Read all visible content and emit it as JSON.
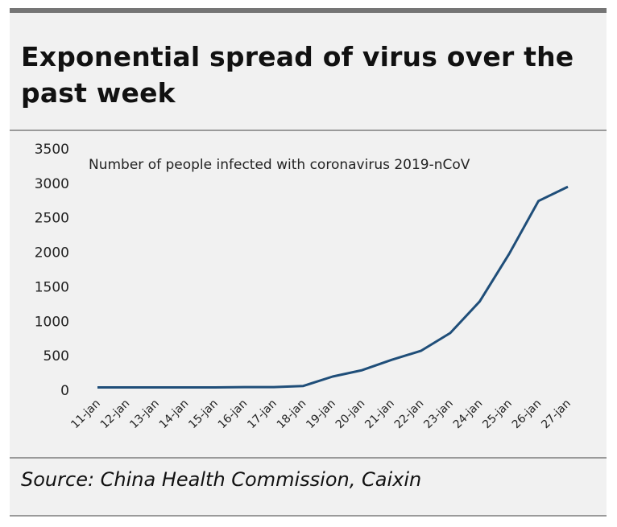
{
  "header": {
    "title": "Exponential spread of virus over the past week"
  },
  "footer": {
    "source": "Source: China Health Commission, Caixin"
  },
  "colors": {
    "panel_bg": "#f1f1f1",
    "line": "#1f4e79",
    "rule": "#9a9a9a",
    "top_rule": "#757575"
  },
  "chart_data": {
    "type": "line",
    "title": "Number of people infected with coronavirus 2019-nCoV",
    "xlabel": "",
    "ylabel": "",
    "ylim": [
      0,
      3500
    ],
    "yticks": [
      0,
      500,
      1000,
      1500,
      2000,
      2500,
      3000,
      3500
    ],
    "grid": false,
    "legend": "none",
    "categories": [
      "11-jan",
      "12-jan",
      "13-jan",
      "14-jan",
      "15-jan",
      "16-jan",
      "17-jan",
      "18-jan",
      "19-jan",
      "20-jan",
      "21-jan",
      "22-jan",
      "23-jan",
      "24-jan",
      "25-jan",
      "26-jan",
      "27-jan"
    ],
    "series": [
      {
        "name": "Number of people infected with coronavirus 2019-nCoV",
        "values": [
          41,
          41,
          41,
          41,
          41,
          45,
          45,
          62,
          198,
          291,
          440,
          571,
          830,
          1287,
          1975,
          2744,
          2950
        ]
      }
    ]
  }
}
